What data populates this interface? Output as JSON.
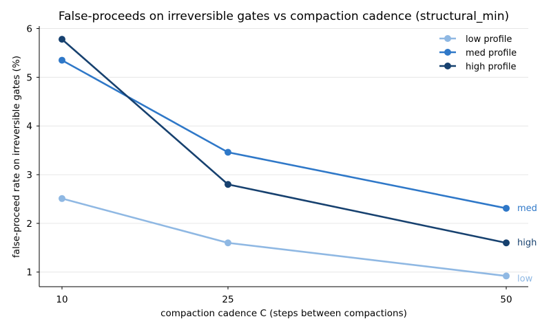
{
  "chart_data": {
    "type": "line",
    "title": "False-proceeds on irreversible gates vs compaction cadence (structural_min)",
    "xlabel": "compaction cadence C (steps between compactions)",
    "ylabel": "false-proceed rate on irreversible gates (%)",
    "x": [
      10,
      25,
      50
    ],
    "x_tick_labels": [
      "10",
      "25",
      "50"
    ],
    "ylim": [
      0.7,
      6.05
    ],
    "y_ticks": [
      1,
      2,
      3,
      4,
      5,
      6
    ],
    "y_tick_labels": [
      "1",
      "2",
      "3",
      "4",
      "5",
      "6"
    ],
    "grid": "horizontal",
    "legend_position": "top-right",
    "series": [
      {
        "name": "low profile",
        "end_label": "low",
        "color": "#8fb8e3",
        "values": [
          2.51,
          1.6,
          0.92
        ]
      },
      {
        "name": "med profile",
        "end_label": "med",
        "color": "#2f78c8",
        "values": [
          5.35,
          3.46,
          2.31
        ]
      },
      {
        "name": "high profile",
        "end_label": "high",
        "color": "#17416f",
        "values": [
          5.78,
          2.8,
          1.6
        ]
      }
    ]
  }
}
